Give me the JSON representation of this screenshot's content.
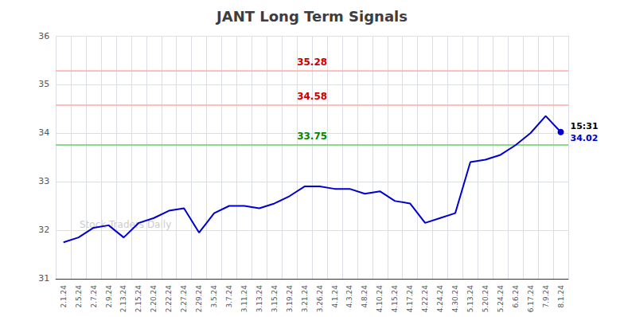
{
  "chart_data": {
    "type": "line",
    "title": "JANT Long Term Signals",
    "categories": [
      "2.1.24",
      "2.5.24",
      "2.7.24",
      "2.9.24",
      "2.13.24",
      "2.15.24",
      "2.20.24",
      "2.22.24",
      "2.27.24",
      "2.29.24",
      "3.5.24",
      "3.7.24",
      "3.11.24",
      "3.13.24",
      "3.15.24",
      "3.19.24",
      "3.21.24",
      "3.26.24",
      "4.1.24",
      "4.3.24",
      "4.8.24",
      "4.10.24",
      "4.15.24",
      "4.17.24",
      "4.22.24",
      "4.24.24",
      "4.30.24",
      "5.13.24",
      "5.20.24",
      "5.24.24",
      "6.6.24",
      "6.17.24",
      "7.9.24",
      "8.1.24"
    ],
    "values": [
      31.75,
      31.85,
      32.05,
      32.1,
      31.85,
      32.15,
      32.25,
      32.4,
      32.45,
      31.95,
      32.35,
      32.5,
      32.5,
      32.45,
      32.55,
      32.7,
      32.9,
      32.9,
      32.85,
      32.85,
      32.75,
      32.8,
      32.6,
      32.55,
      32.15,
      32.25,
      32.35,
      33.4,
      33.45,
      33.55,
      33.75,
      34.0,
      34.35,
      34.02
    ],
    "color": "#0000cc",
    "reference_lines": [
      {
        "value": 35.28,
        "label": "35.28",
        "color": "#ffaaaa",
        "label_color": "#cc0000"
      },
      {
        "value": 34.58,
        "label": "34.58",
        "color": "#ffaaaa",
        "label_color": "#cc0000"
      },
      {
        "value": 33.75,
        "label": "33.75",
        "color": "#66cc66",
        "label_color": "#008800"
      }
    ],
    "annotations": [
      {
        "text": "15:31",
        "color": "#000000"
      },
      {
        "text": "34.02",
        "color": "#0000cc"
      }
    ],
    "watermark": {
      "text": "Stock Traders Daily",
      "color": "#cccccc"
    },
    "ylim": [
      31.0,
      36.0
    ],
    "yticks": [
      31,
      32,
      33,
      34,
      35,
      36
    ],
    "grid": true
  }
}
